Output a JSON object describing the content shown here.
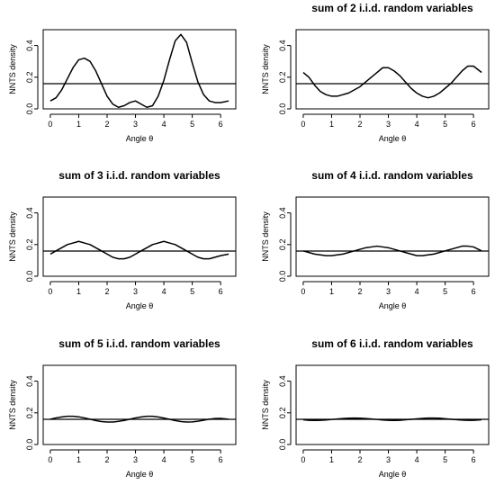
{
  "charts": [
    {
      "title": "",
      "xlabel": "Angle θ",
      "ylabel": "NNTS density"
    },
    {
      "title": "sum of 2 i.i.d. random variables",
      "xlabel": "Angle θ",
      "ylabel": "NNTS density"
    },
    {
      "title": "sum of 3 i.i.d. random variables",
      "xlabel": "Angle θ",
      "ylabel": "NNTS density"
    },
    {
      "title": "sum of 4 i.i.d. random variables",
      "xlabel": "Angle θ",
      "ylabel": "NNTS density"
    },
    {
      "title": "sum of 5 i.i.d. random variables",
      "xlabel": "Angle θ",
      "ylabel": "NNTS density"
    },
    {
      "title": "sum of 6 i.i.d. random variables",
      "xlabel": "Angle θ",
      "ylabel": "NNTS density"
    }
  ],
  "chart_data": [
    {
      "type": "line",
      "title": "",
      "xlabel": "Angle θ",
      "ylabel": "NNTS density",
      "xlim": [
        0,
        6.2832
      ],
      "ylim": [
        0,
        0.5
      ],
      "x_ticks": [
        "0",
        "1",
        "2",
        "3",
        "4",
        "5",
        "6"
      ],
      "y_ticks": [
        "0.0",
        "0.2",
        "0.4"
      ],
      "reference_line": 0.1592,
      "series": [
        {
          "x": [
            0,
            0.2,
            0.4,
            0.6,
            0.8,
            1.0,
            1.2,
            1.4,
            1.6,
            1.8,
            2.0,
            2.2,
            2.4,
            2.6,
            2.8,
            3.0,
            3.2,
            3.4,
            3.6,
            3.8,
            4.0,
            4.2,
            4.4,
            4.6,
            4.8,
            5.0,
            5.2,
            5.4,
            5.6,
            5.8,
            6.0,
            6.2832
          ],
          "values": [
            0.05,
            0.07,
            0.12,
            0.19,
            0.26,
            0.31,
            0.32,
            0.3,
            0.24,
            0.16,
            0.08,
            0.03,
            0.01,
            0.02,
            0.04,
            0.05,
            0.03,
            0.01,
            0.02,
            0.08,
            0.18,
            0.31,
            0.43,
            0.47,
            0.42,
            0.29,
            0.17,
            0.09,
            0.05,
            0.04,
            0.04,
            0.05
          ]
        }
      ]
    },
    {
      "type": "line",
      "title": "sum of 2 i.i.d. random variables",
      "xlabel": "Angle θ",
      "ylabel": "NNTS density",
      "xlim": [
        0,
        6.2832
      ],
      "ylim": [
        0,
        0.5
      ],
      "x_ticks": [
        "0",
        "1",
        "2",
        "3",
        "4",
        "5",
        "6"
      ],
      "y_ticks": [
        "0.0",
        "0.2",
        "0.4"
      ],
      "reference_line": 0.1592,
      "series": [
        {
          "x": [
            0,
            0.2,
            0.4,
            0.6,
            0.8,
            1.0,
            1.2,
            1.4,
            1.6,
            1.8,
            2.0,
            2.2,
            2.4,
            2.6,
            2.8,
            3.0,
            3.2,
            3.4,
            3.6,
            3.8,
            4.0,
            4.2,
            4.4,
            4.6,
            4.8,
            5.0,
            5.2,
            5.4,
            5.6,
            5.8,
            6.0,
            6.2832
          ],
          "values": [
            0.23,
            0.2,
            0.15,
            0.11,
            0.09,
            0.08,
            0.08,
            0.09,
            0.1,
            0.12,
            0.14,
            0.17,
            0.2,
            0.23,
            0.26,
            0.26,
            0.24,
            0.21,
            0.17,
            0.13,
            0.1,
            0.08,
            0.07,
            0.08,
            0.1,
            0.13,
            0.16,
            0.2,
            0.24,
            0.27,
            0.27,
            0.23
          ]
        }
      ]
    },
    {
      "type": "line",
      "title": "sum of 3 i.i.d. random variables",
      "xlabel": "Angle θ",
      "ylabel": "NNTS density",
      "xlim": [
        0,
        6.2832
      ],
      "ylim": [
        0,
        0.5
      ],
      "x_ticks": [
        "0",
        "1",
        "2",
        "3",
        "4",
        "5",
        "6"
      ],
      "y_ticks": [
        "0.0",
        "0.2",
        "0.4"
      ],
      "reference_line": 0.1592,
      "series": [
        {
          "x": [
            0,
            0.2,
            0.4,
            0.6,
            0.8,
            1.0,
            1.2,
            1.4,
            1.6,
            1.8,
            2.0,
            2.2,
            2.4,
            2.6,
            2.8,
            3.0,
            3.2,
            3.4,
            3.6,
            3.8,
            4.0,
            4.2,
            4.4,
            4.6,
            4.8,
            5.0,
            5.2,
            5.4,
            5.6,
            5.8,
            6.0,
            6.2832
          ],
          "values": [
            0.14,
            0.16,
            0.18,
            0.2,
            0.21,
            0.22,
            0.21,
            0.2,
            0.18,
            0.16,
            0.14,
            0.12,
            0.11,
            0.11,
            0.12,
            0.14,
            0.16,
            0.18,
            0.2,
            0.21,
            0.22,
            0.21,
            0.2,
            0.18,
            0.16,
            0.14,
            0.12,
            0.11,
            0.11,
            0.12,
            0.13,
            0.14
          ]
        }
      ]
    },
    {
      "type": "line",
      "title": "sum of 4 i.i.d. random variables",
      "xlabel": "Angle θ",
      "ylabel": "NNTS density",
      "xlim": [
        0,
        6.2832
      ],
      "ylim": [
        0,
        0.5
      ],
      "x_ticks": [
        "0",
        "1",
        "2",
        "3",
        "4",
        "5",
        "6"
      ],
      "y_ticks": [
        "0.0",
        "0.2",
        "0.4"
      ],
      "reference_line": 0.1592,
      "series": [
        {
          "x": [
            0,
            0.2,
            0.4,
            0.6,
            0.8,
            1.0,
            1.2,
            1.4,
            1.6,
            1.8,
            2.0,
            2.2,
            2.4,
            2.6,
            2.8,
            3.0,
            3.2,
            3.4,
            3.6,
            3.8,
            4.0,
            4.2,
            4.4,
            4.6,
            4.8,
            5.0,
            5.2,
            5.4,
            5.6,
            5.8,
            6.0,
            6.2832
          ],
          "values": [
            0.16,
            0.15,
            0.14,
            0.135,
            0.13,
            0.13,
            0.135,
            0.14,
            0.15,
            0.16,
            0.17,
            0.18,
            0.185,
            0.19,
            0.185,
            0.18,
            0.17,
            0.16,
            0.15,
            0.14,
            0.13,
            0.13,
            0.135,
            0.14,
            0.15,
            0.16,
            0.17,
            0.18,
            0.19,
            0.19,
            0.185,
            0.16
          ]
        }
      ]
    },
    {
      "type": "line",
      "title": "sum of 5 i.i.d. random variables",
      "xlabel": "Angle θ",
      "ylabel": "NNTS density",
      "xlim": [
        0,
        6.2832
      ],
      "ylim": [
        0,
        0.5
      ],
      "x_ticks": [
        "0",
        "1",
        "2",
        "3",
        "4",
        "5",
        "6"
      ],
      "y_ticks": [
        "0.0",
        "0.2",
        "0.4"
      ],
      "reference_line": 0.1592,
      "series": [
        {
          "x": [
            0,
            0.2,
            0.4,
            0.6,
            0.8,
            1.0,
            1.2,
            1.4,
            1.6,
            1.8,
            2.0,
            2.2,
            2.4,
            2.6,
            2.8,
            3.0,
            3.2,
            3.4,
            3.6,
            3.8,
            4.0,
            4.2,
            4.4,
            4.6,
            4.8,
            5.0,
            5.2,
            5.4,
            5.6,
            5.8,
            6.0,
            6.2832
          ],
          "values": [
            0.16,
            0.168,
            0.174,
            0.178,
            0.178,
            0.175,
            0.168,
            0.16,
            0.151,
            0.145,
            0.142,
            0.142,
            0.146,
            0.152,
            0.16,
            0.168,
            0.174,
            0.178,
            0.178,
            0.174,
            0.167,
            0.159,
            0.151,
            0.145,
            0.142,
            0.143,
            0.147,
            0.153,
            0.16,
            0.164,
            0.165,
            0.16
          ]
        }
      ]
    },
    {
      "type": "line",
      "title": "sum of 6 i.i.d. random variables",
      "xlabel": "Angle θ",
      "ylabel": "NNTS density",
      "xlim": [
        0,
        6.2832
      ],
      "ylim": [
        0,
        0.5
      ],
      "x_ticks": [
        "0",
        "1",
        "2",
        "3",
        "4",
        "5",
        "6"
      ],
      "y_ticks": [
        "0.0",
        "0.2",
        "0.4"
      ],
      "reference_line": 0.1592,
      "series": [
        {
          "x": [
            0,
            0.2,
            0.4,
            0.6,
            0.8,
            1.0,
            1.2,
            1.4,
            1.6,
            1.8,
            2.0,
            2.2,
            2.4,
            2.6,
            2.8,
            3.0,
            3.2,
            3.4,
            3.6,
            3.8,
            4.0,
            4.2,
            4.4,
            4.6,
            4.8,
            5.0,
            5.2,
            5.4,
            5.6,
            5.8,
            6.0,
            6.2832
          ],
          "values": [
            0.156,
            0.153,
            0.152,
            0.153,
            0.155,
            0.158,
            0.161,
            0.164,
            0.166,
            0.167,
            0.166,
            0.164,
            0.161,
            0.158,
            0.155,
            0.153,
            0.152,
            0.153,
            0.156,
            0.159,
            0.162,
            0.165,
            0.167,
            0.167,
            0.166,
            0.163,
            0.16,
            0.157,
            0.154,
            0.153,
            0.153,
            0.156
          ]
        }
      ]
    }
  ]
}
